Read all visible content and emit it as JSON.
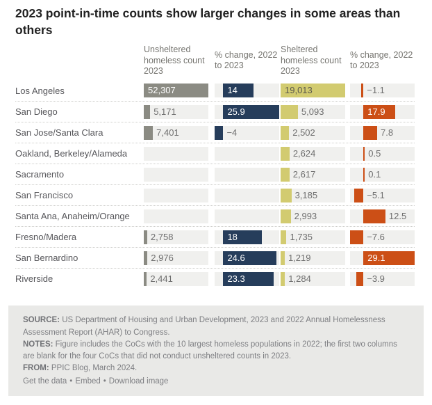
{
  "title": "2023 point-in-time counts show larger changes in some areas than others",
  "chart_data": {
    "type": "bar",
    "title": "2023 point-in-time counts show larger changes in some areas than others",
    "orientation": "horizontal",
    "track_background": "#f0f0ee",
    "columns": [
      {
        "key": "unsheltered-count",
        "header": "Unsheltered homeless count 2023",
        "bar_color": "#8b8b83",
        "inside_text_color": "#ffffff",
        "min": 0,
        "max": 52307
      },
      {
        "key": "unsheltered-pct-change",
        "header": "% change, 2022 to 2023",
        "bar_color": "#263d5b",
        "inside_text_color": "#ffffff",
        "min": -4,
        "max": 25.9
      },
      {
        "key": "sheltered-count",
        "header": "Sheltered homeless count 2023",
        "bar_color": "#d2cb70",
        "inside_text_color": "#5a584c",
        "min": 0,
        "max": 19013
      },
      {
        "key": "sheltered-pct-change",
        "header": "% change, 2022 to 2023",
        "bar_color": "#cc4f16",
        "inside_text_color": "#ffffff",
        "min": -7.6,
        "max": 29.1
      }
    ],
    "rows": [
      {
        "label": "Los Angeles",
        "cells": [
          {
            "value": 52307,
            "display": "52,307"
          },
          {
            "value": 14,
            "display": "14"
          },
          {
            "value": 19013,
            "display": "19,013"
          },
          {
            "value": -1.1,
            "display": "−1.1"
          }
        ]
      },
      {
        "label": "San Diego",
        "cells": [
          {
            "value": 5171,
            "display": "5,171"
          },
          {
            "value": 25.9,
            "display": "25.9"
          },
          {
            "value": 5093,
            "display": "5,093"
          },
          {
            "value": 17.9,
            "display": "17.9"
          }
        ]
      },
      {
        "label": "San Jose/Santa Clara",
        "cells": [
          {
            "value": 7401,
            "display": "7,401"
          },
          {
            "value": -4,
            "display": "−4"
          },
          {
            "value": 2502,
            "display": "2,502"
          },
          {
            "value": 7.8,
            "display": "7.8"
          }
        ]
      },
      {
        "label": "Oakland, Berkeley/Alameda",
        "cells": [
          null,
          null,
          {
            "value": 2624,
            "display": "2,624"
          },
          {
            "value": 0.5,
            "display": "0.5"
          }
        ]
      },
      {
        "label": "Sacramento",
        "cells": [
          null,
          null,
          {
            "value": 2617,
            "display": "2,617"
          },
          {
            "value": 0.1,
            "display": "0.1"
          }
        ]
      },
      {
        "label": "San Francisco",
        "cells": [
          null,
          null,
          {
            "value": 3185,
            "display": "3,185"
          },
          {
            "value": -5.1,
            "display": "−5.1"
          }
        ]
      },
      {
        "label": "Santa Ana, Anaheim/Orange",
        "cells": [
          null,
          null,
          {
            "value": 2993,
            "display": "2,993"
          },
          {
            "value": 12.5,
            "display": "12.5"
          }
        ]
      },
      {
        "label": "Fresno/Madera",
        "cells": [
          {
            "value": 2758,
            "display": "2,758"
          },
          {
            "value": 18,
            "display": "18"
          },
          {
            "value": 1735,
            "display": "1,735"
          },
          {
            "value": -7.6,
            "display": "−7.6"
          }
        ]
      },
      {
        "label": "San Bernardino",
        "cells": [
          {
            "value": 2976,
            "display": "2,976"
          },
          {
            "value": 24.6,
            "display": "24.6"
          },
          {
            "value": 1219,
            "display": "1,219"
          },
          {
            "value": 29.1,
            "display": "29.1"
          }
        ]
      },
      {
        "label": "Riverside",
        "cells": [
          {
            "value": 2441,
            "display": "2,441"
          },
          {
            "value": 23.3,
            "display": "23.3"
          },
          {
            "value": 1284,
            "display": "1,284"
          },
          {
            "value": -3.9,
            "display": "−3.9"
          }
        ]
      }
    ]
  },
  "footer": {
    "source_label": "SOURCE:",
    "source_text": " US Department of Housing and Urban Development, 2023 and 2022 Annual Homelessness Assessment Report (AHAR) to Congress.",
    "notes_label": "NOTES:",
    "notes_text": " Figure includes the CoCs with the 10 largest homeless populations in 2022; the first two columns are blank for the four CoCs that did not conduct unsheltered counts in 2023.",
    "from_label": "FROM:",
    "from_text": " PPIC Blog, March 2024.",
    "links": [
      "Get the data",
      "Embed",
      "Download image"
    ],
    "link_separator": "•"
  }
}
